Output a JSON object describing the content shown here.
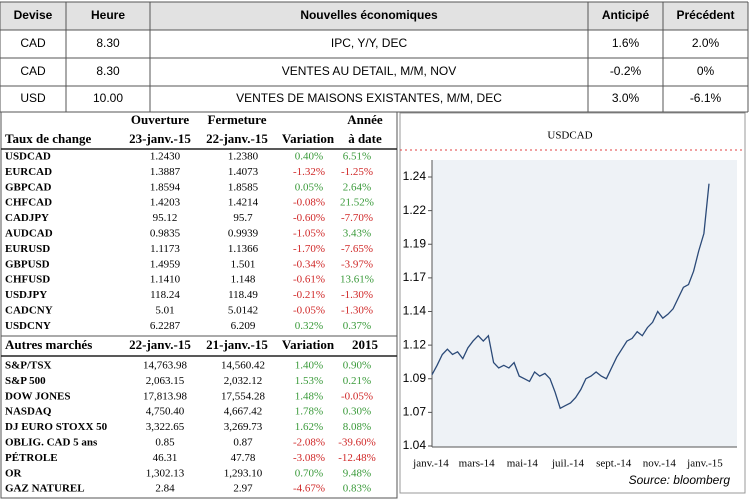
{
  "news_table": {
    "headers": [
      "Devise",
      "Heure",
      "Nouvelles économiques",
      "Anticipé",
      "Précédent"
    ],
    "rows": [
      [
        "CAD",
        "8.30",
        "IPC, Y/Y, DEC",
        "1.6%",
        "2.0%"
      ],
      [
        "CAD",
        "8.30",
        "VENTES AU DETAIL, M/M, NOV",
        "-0.2%",
        "0%"
      ],
      [
        "USD",
        "10.00",
        "VENTES DE MAISONS EXISTANTES, M/M, DEC",
        "3.0%",
        "-6.1%"
      ]
    ]
  },
  "fx_table": {
    "title": "Taux de change",
    "headers": [
      [
        "Ouverture",
        "23-janv.-15"
      ],
      [
        "Fermeture",
        "22-janv.-15"
      ],
      [
        "Variation"
      ],
      [
        "Année",
        "à date"
      ]
    ],
    "rows": [
      [
        "USDCAD",
        "1.2430",
        "1.2380",
        "0.40%",
        "6.51%"
      ],
      [
        "EURCAD",
        "1.3887",
        "1.4073",
        "-1.32%",
        "-1.25%"
      ],
      [
        "GBPCAD",
        "1.8594",
        "1.8585",
        "0.05%",
        "2.64%"
      ],
      [
        "CHFCAD",
        "1.4203",
        "1.4214",
        "-0.08%",
        "21.52%"
      ],
      [
        "CADJPY",
        "95.12",
        "95.7",
        "-0.60%",
        "-7.70%"
      ],
      [
        "AUDCAD",
        "0.9835",
        "0.9939",
        "-1.05%",
        "3.43%"
      ],
      [
        "EURUSD",
        "1.1173",
        "1.1366",
        "-1.70%",
        "-7.65%"
      ],
      [
        "GBPUSD",
        "1.4959",
        "1.501",
        "-0.34%",
        "-3.97%"
      ],
      [
        "CHFUSD",
        "1.1410",
        "1.148",
        "-0.61%",
        "13.61%"
      ],
      [
        "USDJPY",
        "118.24",
        "118.49",
        "-0.21%",
        "-1.30%"
      ],
      [
        "CADCNY",
        "5.01",
        "5.0142",
        "-0.05%",
        "-1.30%"
      ],
      [
        "USDCNY",
        "6.2287",
        "6.209",
        "0.32%",
        "0.37%"
      ]
    ]
  },
  "markets_table": {
    "title": "Autres marchés",
    "headers": [
      "22-janv.-15",
      "21-janv.-15",
      "Variation",
      "2015"
    ],
    "rows": [
      [
        "S&P/TSX",
        "14,763.98",
        "14,560.42",
        "1.40%",
        "0.90%"
      ],
      [
        "S&P 500",
        "2,063.15",
        "2,032.12",
        "1.53%",
        "0.21%"
      ],
      [
        "DOW JONES",
        "17,813.98",
        "17,554.28",
        "1.48%",
        "-0.05%"
      ],
      [
        "NASDAQ",
        "4,750.40",
        "4,667.42",
        "1.78%",
        "0.30%"
      ],
      [
        "DJ EURO STOXX 50",
        "3,322.65",
        "3,269.73",
        "1.62%",
        "8.08%"
      ],
      [
        "OBLIG. CAD 5 ans",
        "0.85",
        "0.87",
        "-2.08%",
        "-39.60%"
      ],
      [
        "PÉTROLE",
        "46.31",
        "47.78",
        "-3.08%",
        "-12.48%"
      ],
      [
        "OR",
        "1,302.13",
        "1,293.10",
        "0.70%",
        "9.48%"
      ],
      [
        "GAZ NATUREL",
        "2.84",
        "2.97",
        "-4.67%",
        "0.83%"
      ]
    ]
  },
  "chart_data": {
    "type": "line",
    "title": "USDCAD",
    "color": "#2b4a78",
    "xticks": [
      "janv.-14",
      "mars-14",
      "mai-14",
      "juil.-14",
      "sept.-14",
      "nov.-14",
      "janv.-15"
    ],
    "values": [
      1.093,
      1.1,
      1.108,
      1.112,
      1.108,
      1.11,
      1.105,
      1.113,
      1.118,
      1.122,
      1.118,
      1.122,
      1.102,
      1.098,
      1.1,
      1.098,
      1.102,
      1.092,
      1.09,
      1.088,
      1.095,
      1.092,
      1.094,
      1.09,
      1.08,
      1.068,
      1.07,
      1.072,
      1.076,
      1.082,
      1.09,
      1.092,
      1.095,
      1.092,
      1.09,
      1.098,
      1.106,
      1.112,
      1.118,
      1.12,
      1.125,
      1.122,
      1.128,
      1.132,
      1.14,
      1.135,
      1.138,
      1.142,
      1.15,
      1.158,
      1.16,
      1.17,
      1.185,
      1.198,
      1.235
    ],
    "ylim": [
      1.04,
      1.24
    ],
    "yticks": [
      1.04,
      {
        "value": 1.065,
        "label": "1.07"
      },
      1.09,
      {
        "value": 1.115,
        "label": "1.12"
      },
      1.14,
      {
        "value": 1.165,
        "label": "1.17"
      },
      1.19,
      {
        "value": 1.215,
        "label": "1.22"
      },
      1.24
    ],
    "source": "Source: bloomberg"
  }
}
